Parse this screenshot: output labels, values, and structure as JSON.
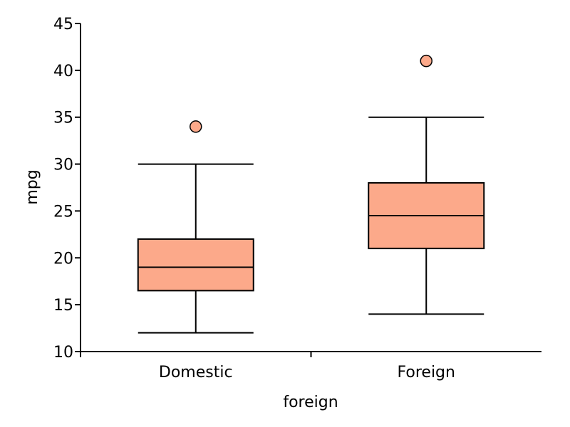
{
  "chart_data": {
    "type": "box",
    "xlabel": "foreign",
    "ylabel": "mpg",
    "ylim": [
      10,
      45
    ],
    "yticks": [
      10,
      15,
      20,
      25,
      30,
      35,
      40,
      45
    ],
    "grid": false,
    "categories": [
      "Domestic",
      "Foreign"
    ],
    "boxes": [
      {
        "category": "Domestic",
        "whisker_low": 12,
        "q1": 16.5,
        "median": 19,
        "q3": 22,
        "whisker_high": 30,
        "outliers": [
          34
        ]
      },
      {
        "category": "Foreign",
        "whisker_low": 14,
        "q1": 21,
        "median": 24.5,
        "q3": 28,
        "whisker_high": 35,
        "outliers": [
          41
        ]
      }
    ],
    "colors": {
      "box_fill": "#fca98a",
      "outlier_fill": "#fca98a",
      "stroke": "#000000"
    }
  }
}
